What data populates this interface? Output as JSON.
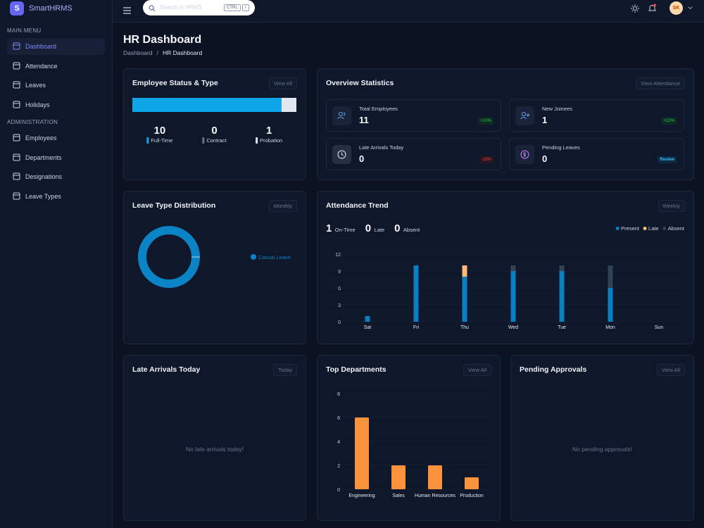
{
  "sidebar": {
    "logo": "S",
    "brand": "SmartHRMS",
    "sections": [
      {
        "title": "MAIN MENU",
        "items": [
          "Dashboard",
          "Attendance",
          "Leaves",
          "Holidays"
        ]
      },
      {
        "title": "ADMINISTRATION",
        "items": [
          "Employees",
          "Departments",
          "Designations",
          "Leave Types"
        ]
      }
    ]
  },
  "topbar": {
    "search_placeholder": "Search in HRMS",
    "shortcut_keys": [
      "CTRL",
      "/"
    ],
    "avatar_initials": "SK"
  },
  "header": {
    "title": "HR Dashboard",
    "breadcrumb": [
      "Dashboard",
      "HR Dashboard"
    ]
  },
  "overview": {
    "title": "Overview Statistics",
    "action": "View Attendance",
    "cards": [
      {
        "label": "Total Employees",
        "value": 11,
        "badge": "+10%"
      },
      {
        "label": "New Joinees",
        "value": 1,
        "badge": "+22%"
      },
      {
        "label": "Late Arrivals Today",
        "value": 0,
        "badge": "-16%"
      },
      {
        "label": "Pending Leaves",
        "value": 0,
        "badge": "Review"
      }
    ]
  },
  "late_arrivals": {
    "title": "Late Arrivals Today",
    "action": "Today",
    "empty": "No late arrivals today!"
  },
  "pending_approvals": {
    "title": "Pending Approvals",
    "action": "View All",
    "empty": "No pending approvals!"
  },
  "chart_data": [
    {
      "type": "meter",
      "title": "Employee Status & Type",
      "action": "View All",
      "categories": [
        "Full-Time",
        "Contract",
        "Probation"
      ],
      "values": [
        10,
        0,
        1
      ],
      "colors": [
        "#0ea5e9",
        "#64748b",
        "#e2e8f0"
      ]
    },
    {
      "type": "donut",
      "title": "Leave Type Distribution",
      "action": "Monthly",
      "categories": [
        "Casual Leave"
      ],
      "values": [
        100
      ],
      "colors": [
        "#0b84c6"
      ]
    },
    {
      "type": "stacked-bar",
      "title": "Attendance Trend",
      "action": "Weekly",
      "summary": [
        {
          "value": 1,
          "label": "On-Time"
        },
        {
          "value": 0,
          "label": "Late"
        },
        {
          "value": 0,
          "label": "Absent"
        }
      ],
      "categories": [
        "Sat",
        "Fri",
        "Thu",
        "Wed",
        "Tue",
        "Mon",
        "Sun"
      ],
      "series": [
        {
          "name": "Present",
          "color": "#0b7fc4",
          "values": [
            1,
            10,
            8,
            9,
            9,
            6,
            0
          ]
        },
        {
          "name": "Late",
          "color": "#fdba74",
          "values": [
            0,
            0,
            2,
            0,
            0,
            0,
            0
          ]
        },
        {
          "name": "Absent",
          "color": "#334155",
          "values": [
            0,
            0,
            0,
            1,
            1,
            4,
            0
          ]
        }
      ],
      "ylim": [
        0,
        12
      ],
      "yticks": [
        0,
        3,
        6,
        9,
        12
      ],
      "grid": true
    },
    {
      "type": "bar",
      "title": "Top Departments",
      "action": "View All",
      "categories": [
        "Engineering",
        "Sales",
        "Human Resources",
        "Production"
      ],
      "values": [
        6,
        2,
        2,
        1
      ],
      "color": "#fb923c",
      "ylim": [
        0,
        8
      ],
      "yticks": [
        0,
        2,
        4,
        6,
        8
      ],
      "grid": true
    }
  ]
}
